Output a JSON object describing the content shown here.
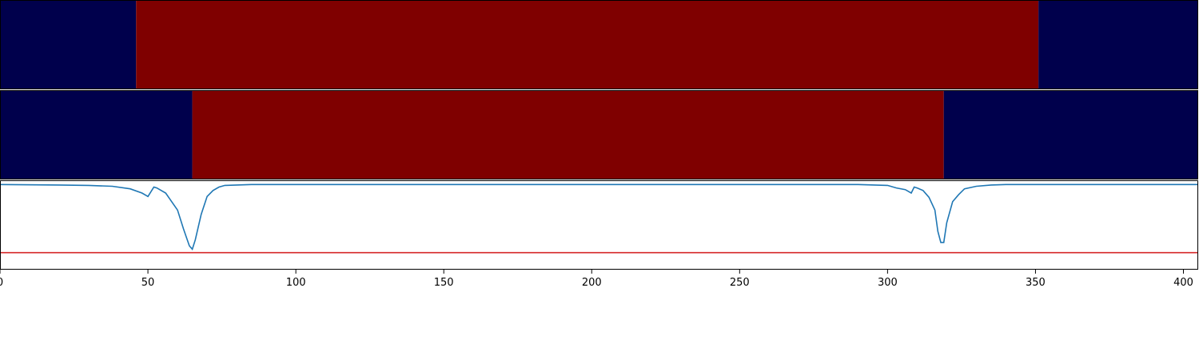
{
  "chart_data": [
    {
      "type": "heatmap",
      "description_rows": "top binary band",
      "xlim": [
        0,
        405
      ],
      "segments": [
        {
          "x_start": 0,
          "x_end": 46,
          "value": 0
        },
        {
          "x_start": 46,
          "x_end": 351,
          "value": 1
        },
        {
          "x_start": 351,
          "x_end": 405,
          "value": 0
        }
      ],
      "colors": {
        "0": "#00004c",
        "1": "#7f0000"
      }
    },
    {
      "type": "heatmap",
      "xlim": [
        0,
        405
      ],
      "segments": [
        {
          "x_start": 0,
          "x_end": 65,
          "value": 0
        },
        {
          "x_start": 65,
          "x_end": 319,
          "value": 1
        },
        {
          "x_start": 319,
          "x_end": 405,
          "value": 0
        }
      ],
      "colors": {
        "0": "#00004c",
        "1": "#7f0000"
      }
    },
    {
      "type": "line",
      "xlim": [
        0,
        405
      ],
      "ylim": [
        -1.0,
        0.05
      ],
      "xticks": [
        "0",
        "50",
        "100",
        "150",
        "200",
        "250",
        "300",
        "350",
        "400"
      ],
      "xtick_values": [
        0,
        50,
        100,
        150,
        200,
        250,
        300,
        350,
        400
      ],
      "series": [
        {
          "color": "#1f77b4",
          "x": [
            0,
            20,
            30,
            38,
            44,
            48,
            50,
            52,
            53,
            56,
            58,
            60,
            62,
            63,
            64,
            65,
            66,
            68,
            70,
            72,
            74,
            76,
            80,
            85,
            90,
            200,
            290,
            300,
            303,
            306,
            308,
            309,
            310,
            312,
            314,
            316,
            317,
            318,
            319,
            320,
            322,
            324,
            326,
            330,
            335,
            340,
            370,
            405
          ],
          "y": [
            0.0,
            -0.005,
            -0.01,
            -0.02,
            -0.05,
            -0.1,
            -0.14,
            -0.03,
            -0.04,
            -0.1,
            -0.2,
            -0.3,
            -0.52,
            -0.62,
            -0.72,
            -0.76,
            -0.65,
            -0.35,
            -0.14,
            -0.07,
            -0.03,
            -0.01,
            -0.005,
            0.0,
            0.0,
            0.0,
            0.0,
            -0.01,
            -0.04,
            -0.06,
            -0.1,
            -0.03,
            -0.04,
            -0.07,
            -0.15,
            -0.3,
            -0.55,
            -0.68,
            -0.68,
            -0.45,
            -0.2,
            -0.12,
            -0.05,
            -0.02,
            -0.005,
            0.0,
            0.0,
            0.0
          ]
        },
        {
          "color": "#d62728",
          "x": [
            0,
            405
          ],
          "y": [
            -0.8,
            -0.8
          ]
        }
      ]
    }
  ]
}
